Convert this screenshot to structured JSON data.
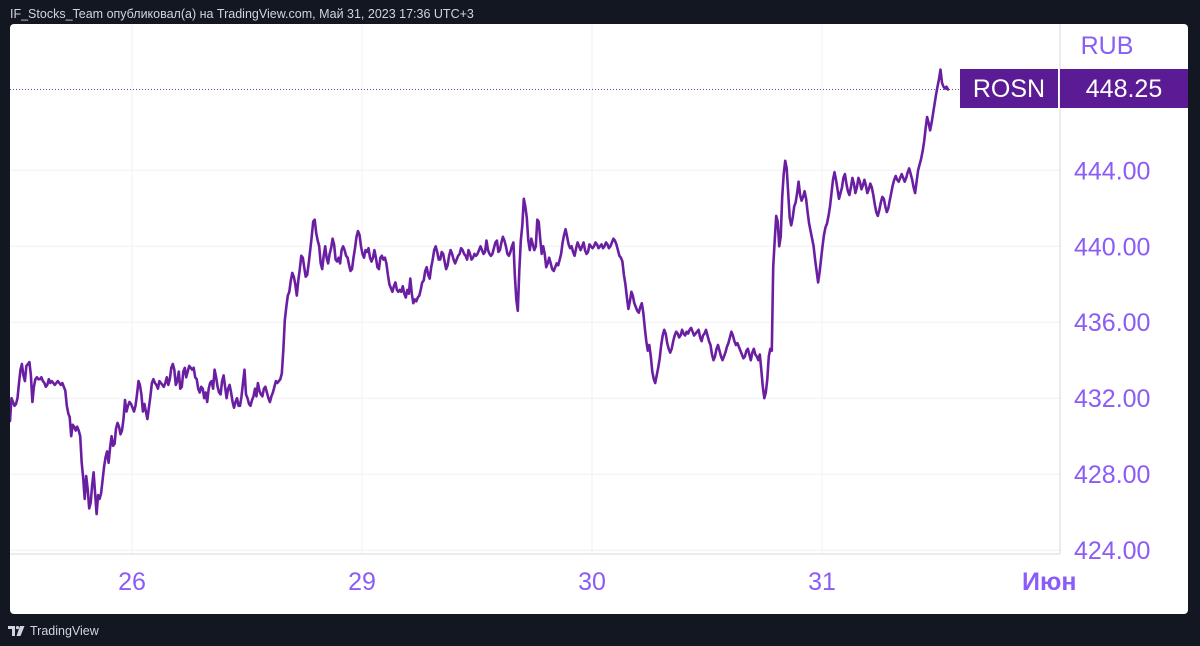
{
  "header": {
    "attribution": "IF_Stocks_Team опубликовал(а) на TradingView.com, Май 31, 2023 17:36 UTC+3"
  },
  "footer": {
    "brand": "TradingView",
    "logo_icon": "tradingview-logo-icon"
  },
  "colors": {
    "line": "#6a1fa2",
    "axis_text": "#8b5cf6",
    "badge_bg": "#5b1b94",
    "badge_text": "#ffffff",
    "grid": "#f0f0f3",
    "background": "#ffffff"
  },
  "chart_data": {
    "type": "line",
    "symbol": "ROSN",
    "currency": "RUB",
    "last_price": "448.25",
    "x_ticks": [
      "26",
      "29",
      "30",
      "31",
      "Июн"
    ],
    "y_ticks": [
      "424.00",
      "428.00",
      "432.00",
      "436.00",
      "440.00",
      "444.00"
    ],
    "ylim": [
      423.8,
      451.7
    ],
    "grid": true,
    "series": [
      {
        "values": [
          430.8,
          432.0,
          431.8,
          431.6,
          431.7,
          432.0,
          432.8,
          433.5,
          433.8,
          433.2,
          432.9,
          433.7,
          433.8,
          433.9,
          433.2,
          431.8,
          432.6,
          433.0,
          433.1,
          433.0,
          433.0,
          433.1,
          432.9,
          432.8,
          432.6,
          432.7,
          433.0,
          432.8,
          432.9,
          432.8,
          432.7,
          432.8,
          432.9,
          432.8,
          432.7,
          432.8,
          432.6,
          432.4,
          431.6,
          431.2,
          431.0,
          430.0,
          430.6,
          430.5,
          430.3,
          430.5,
          430.3,
          430.0,
          428.6,
          427.8,
          426.7,
          427.9,
          427.2,
          426.2,
          426.5,
          427.4,
          428.1,
          427.0,
          425.9,
          426.9,
          426.7,
          427.0,
          427.7,
          428.4,
          428.9,
          429.2,
          428.6,
          429.4,
          430.0,
          429.5,
          429.6,
          430.4,
          430.7,
          430.5,
          430.1,
          430.3,
          430.9,
          431.9,
          431.3,
          431.6,
          431.8,
          431.7,
          431.5,
          431.3,
          431.6,
          432.2,
          432.9,
          432.7,
          432.2,
          431.3,
          431.7,
          431.3,
          430.9,
          431.5,
          432.1,
          432.8,
          433.0,
          432.8,
          432.7,
          432.5,
          432.9,
          432.8,
          432.7,
          432.6,
          432.8,
          433.1,
          432.7,
          433.0,
          433.6,
          433.8,
          433.5,
          432.7,
          432.9,
          433.4,
          432.5,
          432.6,
          433.4,
          433.6,
          433.1,
          433.4,
          433.7,
          433.6,
          433.5,
          433.6,
          433.1,
          433.0,
          432.5,
          432.3,
          432.6,
          432.5,
          432.0,
          432.3,
          431.8,
          432.5,
          432.8,
          432.9,
          432.5,
          433.5,
          433.1,
          432.6,
          432.3,
          432.2,
          432.9,
          433.2,
          432.6,
          432.0,
          432.5,
          432.7,
          432.3,
          431.8,
          431.5,
          431.8,
          432.0,
          431.6,
          431.6,
          432.1,
          432.8,
          433.5,
          432.2,
          432.0,
          431.7,
          431.6,
          431.9,
          432.1,
          432.5,
          432.1,
          432.8,
          432.4,
          432.2,
          432.1,
          432.5,
          432.6,
          432.3,
          432.0,
          431.8,
          432.1,
          432.3,
          432.6,
          432.9,
          432.8,
          432.9,
          433.0,
          433.3,
          434.5,
          436.1,
          436.8,
          437.4,
          437.6,
          438.2,
          438.6,
          438.4,
          438.0,
          437.4,
          438.2,
          438.8,
          439.5,
          439.4,
          438.9,
          438.4,
          438.5,
          439.1,
          439.8,
          440.5,
          441.3,
          441.4,
          440.7,
          440.3,
          440.0,
          439.1,
          438.8,
          439.5,
          440.0,
          439.4,
          439.1,
          439.6,
          439.9,
          440.4,
          440.1,
          439.3,
          439.2,
          439.4,
          439.1,
          439.8,
          440.0,
          439.8,
          439.5,
          439.4,
          439.0,
          438.7,
          438.8,
          439.4,
          439.9,
          440.5,
          440.8,
          440.6,
          440.0,
          439.6,
          439.4,
          439.8,
          439.7,
          439.9,
          439.4,
          439.2,
          439.4,
          439.8,
          439.4,
          438.9,
          438.8,
          439.4,
          439.5,
          439.3,
          439.4,
          439.1,
          438.5,
          438.0,
          437.8,
          437.6,
          437.9,
          438.1,
          437.7,
          437.6,
          437.7,
          437.6,
          437.9,
          437.5,
          437.3,
          437.7,
          437.5,
          438.3,
          437.5,
          437.0,
          437.2,
          437.1,
          437.3,
          437.4,
          437.7,
          438.1,
          438.2,
          438.7,
          438.9,
          438.5,
          438.3,
          438.9,
          439.3,
          439.8,
          440.0,
          439.7,
          439.3,
          439.3,
          439.7,
          439.6,
          439.2,
          438.8,
          439.0,
          439.5,
          439.8,
          439.6,
          439.3,
          439.1,
          439.3,
          439.5,
          439.6,
          439.9,
          439.8,
          439.6,
          439.5,
          439.3,
          439.8,
          439.6,
          439.3,
          439.4,
          439.6,
          439.5,
          439.6,
          439.8,
          440.0,
          439.8,
          439.6,
          439.7,
          440.3,
          439.8,
          439.6,
          439.5,
          439.6,
          439.9,
          440.2,
          440.3,
          439.7,
          439.8,
          440.2,
          440.5,
          440.3,
          440.0,
          439.6,
          439.5,
          439.7,
          440.0,
          440.2,
          438.5,
          437.2,
          436.6,
          438.7,
          440.3,
          441.1,
          442.5,
          442.1,
          441.5,
          440.3,
          439.8,
          440.4,
          440.1,
          439.8,
          440.0,
          441.4,
          441.3,
          440.4,
          439.6,
          440.0,
          439.6,
          438.9,
          439.1,
          439.4,
          439.1,
          438.8,
          438.7,
          438.9,
          439.1,
          439.0,
          439.3,
          439.6,
          440.2,
          440.6,
          440.9,
          440.5,
          440.1,
          439.9,
          440.0,
          439.7,
          439.5,
          439.9,
          440.2,
          440.0,
          439.8,
          440.0,
          440.2,
          439.8,
          439.6,
          439.7,
          440.1,
          440.0,
          439.9,
          440.0,
          440.2,
          440.1,
          439.9,
          440.0,
          440.1,
          439.9,
          440.0,
          440.2,
          440.1,
          439.9,
          440.0,
          440.2,
          440.4,
          440.3,
          440.1,
          439.8,
          439.5,
          439.4,
          439.2,
          438.5,
          438.0,
          437.3,
          436.7,
          437.1,
          437.6,
          437.4,
          437.0,
          436.8,
          436.6,
          436.5,
          436.8,
          437.0,
          436.5,
          435.7,
          435.0,
          434.5,
          434.8,
          434.2,
          433.4,
          433.0,
          432.8,
          433.2,
          433.6,
          434.1,
          434.8,
          435.3,
          435.6,
          435.4,
          434.9,
          434.6,
          434.4,
          434.6,
          435.0,
          435.3,
          435.5,
          435.4,
          435.2,
          435.3,
          435.6,
          435.4,
          435.3,
          435.5,
          435.4,
          435.6,
          435.7,
          435.5,
          435.3,
          435.4,
          435.5,
          435.6,
          435.2,
          435.0,
          435.3,
          435.4,
          435.6,
          435.3,
          435.0,
          434.8,
          434.3,
          434.0,
          434.2,
          434.6,
          434.8,
          434.5,
          434.2,
          434.0,
          434.2,
          434.4,
          434.7,
          434.9,
          435.2,
          435.5,
          435.3,
          435.0,
          434.8,
          434.9,
          434.7,
          434.5,
          434.3,
          434.1,
          434.2,
          434.5,
          434.6,
          434.3,
          434.0,
          434.4,
          434.6,
          434.3,
          434.2,
          434.0,
          434.3,
          433.5,
          432.6,
          432.0,
          432.3,
          433.0,
          434.2,
          434.6,
          434.5,
          438.9,
          440.3,
          441.6,
          441.3,
          440.0,
          440.5,
          442.6,
          443.8,
          444.5,
          444.1,
          442.8,
          441.5,
          441.1,
          441.5,
          442.1,
          442.3,
          442.8,
          443.4,
          442.7,
          442.4,
          442.6,
          442.9,
          442.5,
          441.8,
          441.2,
          440.8,
          440.4,
          440.0,
          439.3,
          438.7,
          438.1,
          438.6,
          439.3,
          440.0,
          440.6,
          441.0,
          441.2,
          441.6,
          442.1,
          442.8,
          443.5,
          443.9,
          443.5,
          443.0,
          442.5,
          442.8,
          443.1,
          443.6,
          443.8,
          443.3,
          442.9,
          442.7,
          443.1,
          443.6,
          443.3,
          442.8,
          443.1,
          443.6,
          443.4,
          443.0,
          443.2,
          443.5,
          443.2,
          442.8,
          443.0,
          443.3,
          443.1,
          442.7,
          442.2,
          441.8,
          441.6,
          441.9,
          442.3,
          442.6,
          442.5,
          442.1,
          441.8,
          442.0,
          442.4,
          442.8,
          443.2,
          443.5,
          443.7,
          443.5,
          443.4,
          443.6,
          443.8,
          443.6,
          443.4,
          443.6,
          443.9,
          444.1,
          443.8,
          443.5,
          443.1,
          442.8,
          443.4,
          444.0,
          444.3,
          444.6,
          445.0,
          445.5,
          446.2,
          446.8,
          446.5,
          446.1,
          446.5,
          447.0,
          447.5,
          448.0,
          448.4,
          448.8,
          449.3,
          448.6,
          448.4,
          448.3,
          448.4,
          448.25
        ]
      }
    ]
  }
}
